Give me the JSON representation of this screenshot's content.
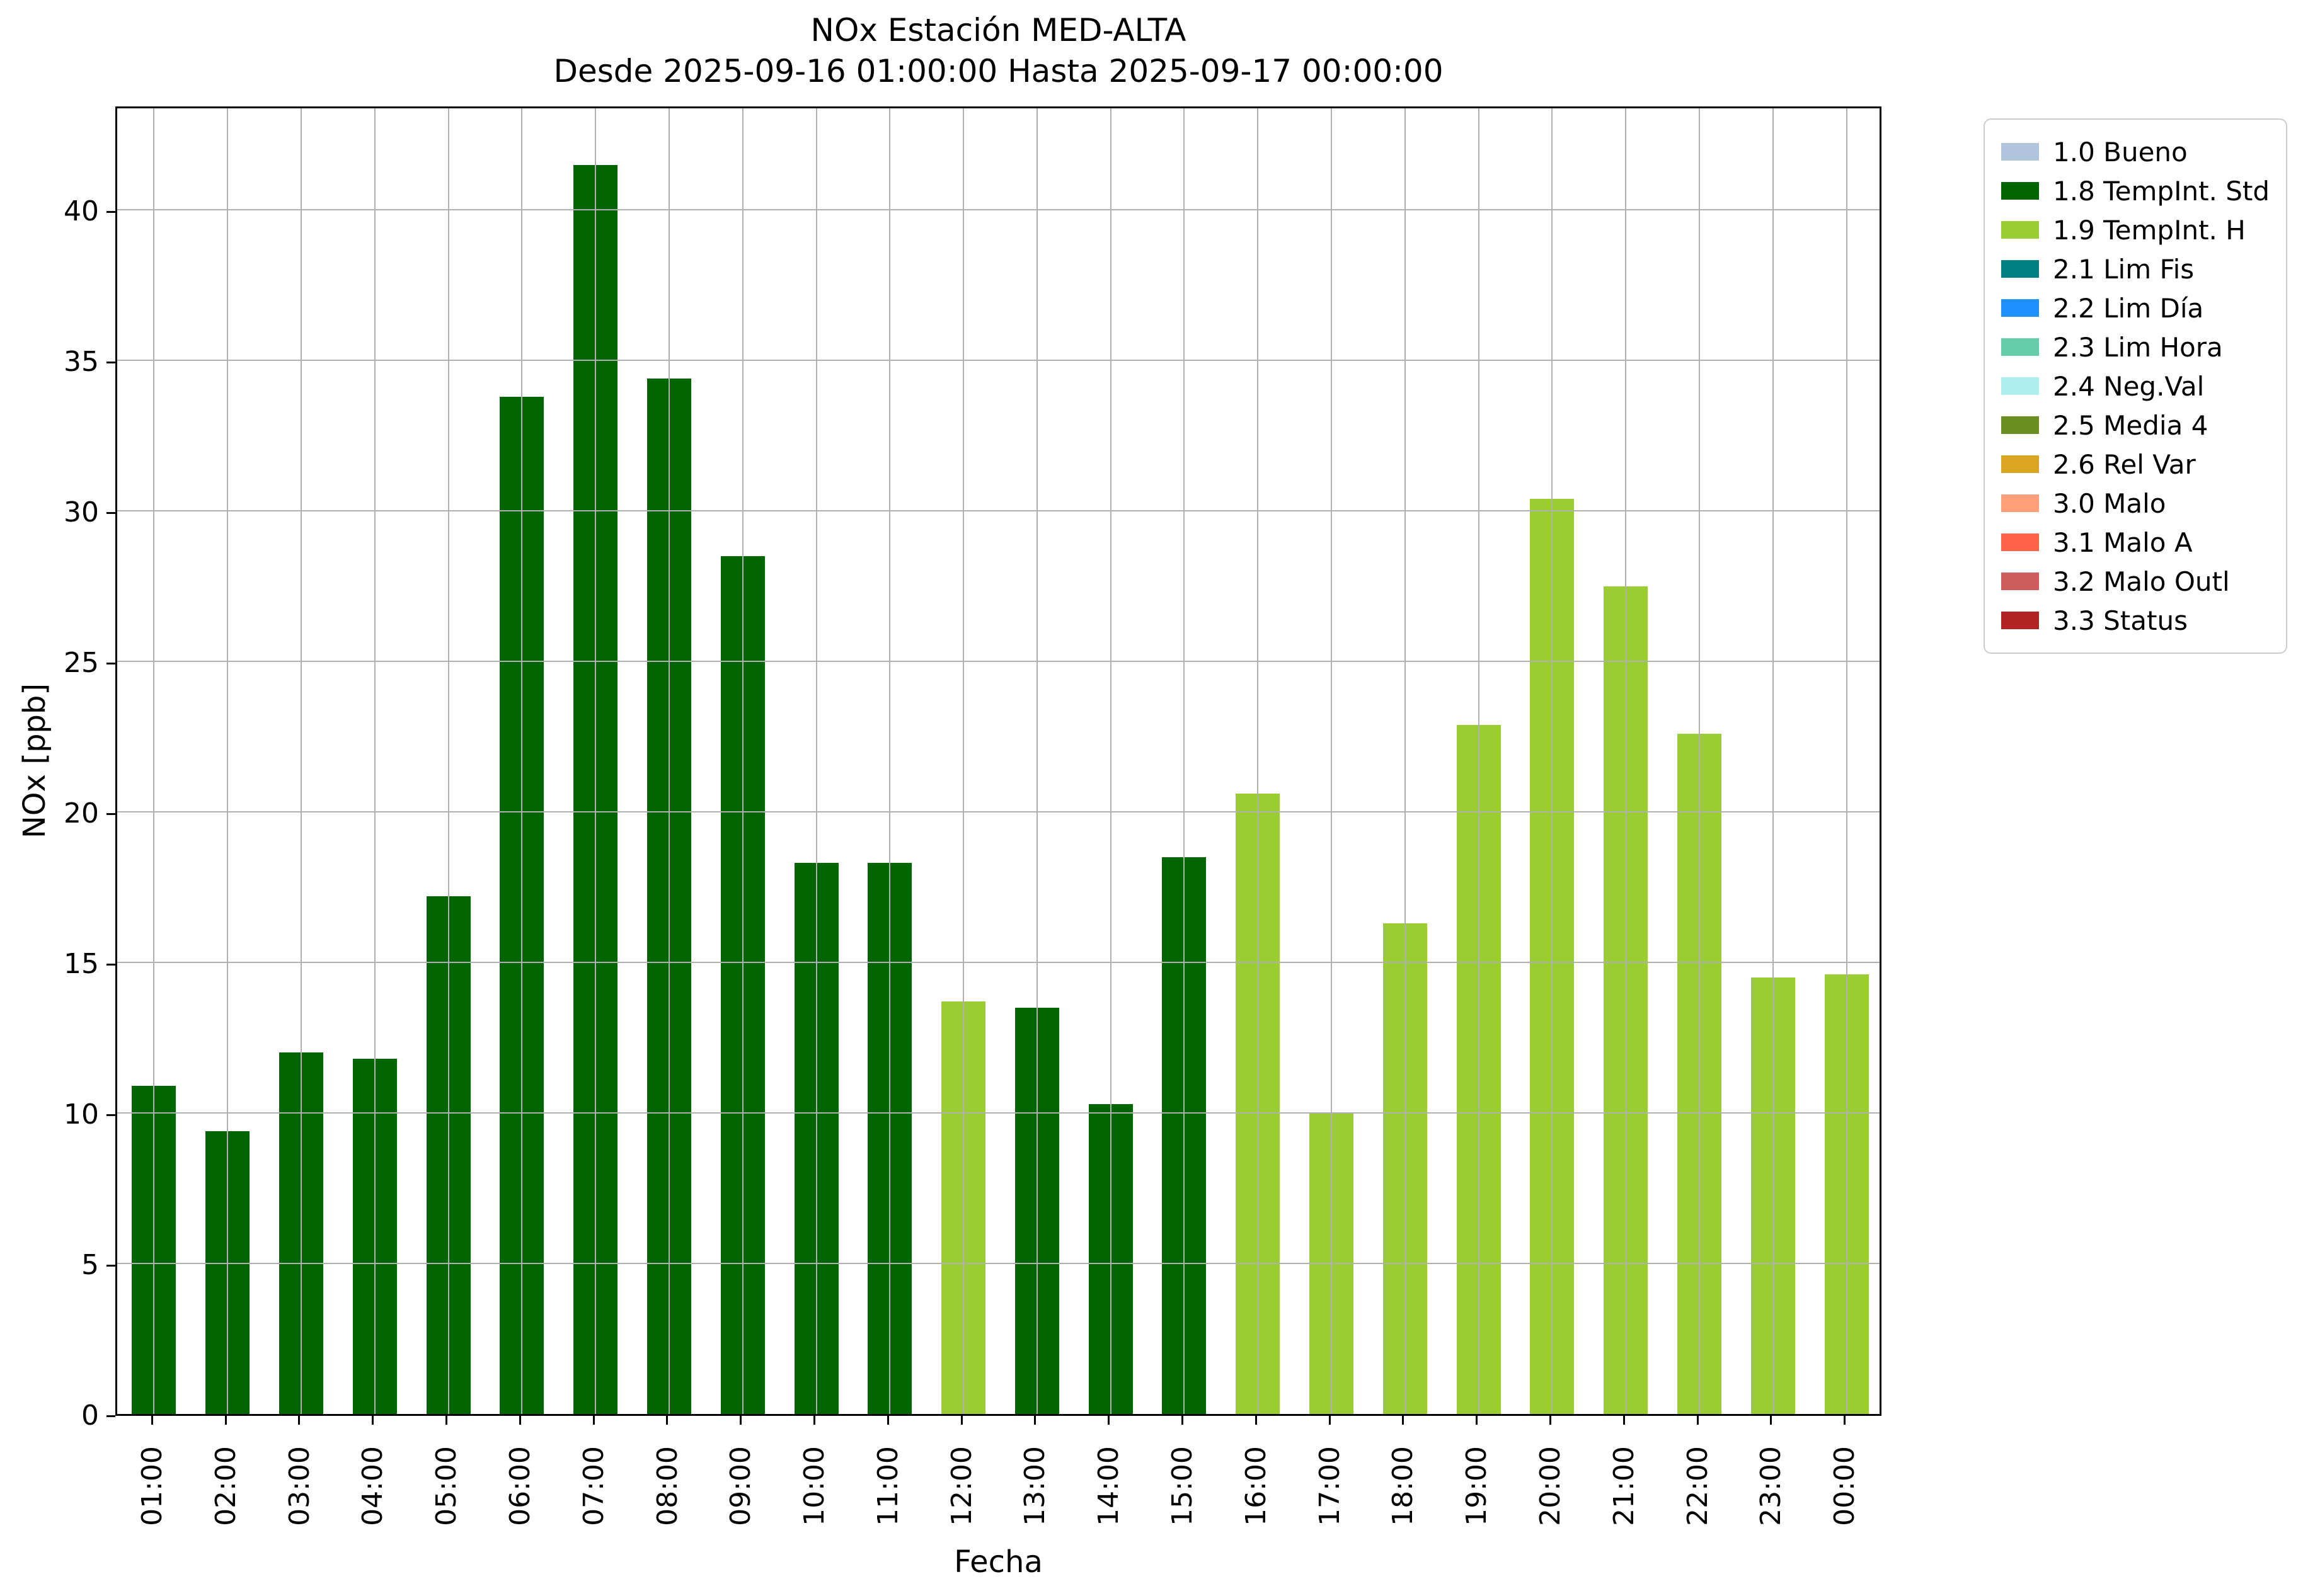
{
  "chart_data": {
    "type": "bar",
    "title": "NOx Estación MED-ALTA",
    "subtitle": "Desde 2025-09-16 01:00:00 Hasta 2025-09-17 00:00:00",
    "xlabel": "Fecha",
    "ylabel": "NOx [ppb]",
    "ylim": [
      0,
      43.5
    ],
    "yticks": [
      0,
      5,
      10,
      15,
      20,
      25,
      30,
      35,
      40
    ],
    "grid": true,
    "grid_color": "#b0b0b0",
    "plot_background": "#ffffff",
    "categories": [
      "01:00",
      "02:00",
      "03:00",
      "04:00",
      "05:00",
      "06:00",
      "07:00",
      "08:00",
      "09:00",
      "10:00",
      "11:00",
      "12:00",
      "13:00",
      "14:00",
      "15:00",
      "16:00",
      "17:00",
      "18:00",
      "19:00",
      "20:00",
      "21:00",
      "22:00",
      "23:00",
      "00:00"
    ],
    "series": [
      {
        "name": "NOx",
        "values": [
          10.9,
          9.4,
          12.0,
          11.8,
          17.2,
          33.8,
          41.5,
          34.4,
          28.5,
          18.3,
          18.3,
          13.7,
          13.5,
          10.3,
          18.5,
          20.6,
          10.0,
          16.3,
          22.9,
          30.4,
          27.5,
          22.6,
          14.5,
          14.6
        ],
        "flags": [
          "1.8 TempInt. Std",
          "1.8 TempInt. Std",
          "1.8 TempInt. Std",
          "1.8 TempInt. Std",
          "1.8 TempInt. Std",
          "1.8 TempInt. Std",
          "1.8 TempInt. Std",
          "1.8 TempInt. Std",
          "1.8 TempInt. Std",
          "1.8 TempInt. Std",
          "1.8 TempInt. Std",
          "1.9 TempInt. H",
          "1.8 TempInt. Std",
          "1.8 TempInt. Std",
          "1.8 TempInt. Std",
          "1.9 TempInt. H",
          "1.9 TempInt. H",
          "1.9 TempInt. H",
          "1.9 TempInt. H",
          "1.9 TempInt. H",
          "1.9 TempInt. H",
          "1.9 TempInt. H",
          "1.9 TempInt. H",
          "1.9 TempInt. H"
        ]
      }
    ],
    "legend": {
      "position": "outside-upper-right",
      "entries": [
        {
          "label": "1.0 Bueno",
          "color": "#b0c4de"
        },
        {
          "label": "1.8 TempInt. Std",
          "color": "#006400"
        },
        {
          "label": "1.9 TempInt. H",
          "color": "#9acd32"
        },
        {
          "label": "2.1 Lim Fis",
          "color": "#008080"
        },
        {
          "label": "2.2 Lim Día",
          "color": "#1e90ff"
        },
        {
          "label": "2.3 Lim Hora",
          "color": "#66cdaa"
        },
        {
          "label": "2.4 Neg.Val",
          "color": "#afeeee"
        },
        {
          "label": "2.5 Media 4",
          "color": "#6b8e23"
        },
        {
          "label": "2.6 Rel Var",
          "color": "#daa520"
        },
        {
          "label": "3.0 Malo",
          "color": "#ffa07a"
        },
        {
          "label": "3.1 Malo A",
          "color": "#ff6347"
        },
        {
          "label": "3.2 Malo Outl",
          "color": "#cd5c5c"
        },
        {
          "label": "3.3 Status",
          "color": "#b22222"
        }
      ]
    }
  }
}
